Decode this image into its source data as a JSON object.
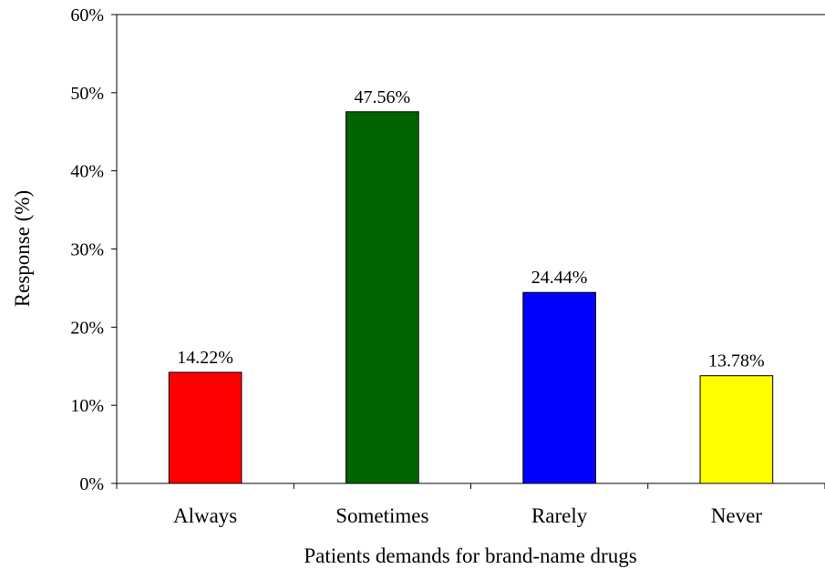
{
  "chart_data": {
    "type": "bar",
    "title": "",
    "xlabel": "Patients demands for brand-name drugs",
    "ylabel": "Response (%)",
    "categories": [
      "Always",
      "Sometimes",
      "Rarely",
      "Never"
    ],
    "values": [
      14.22,
      47.56,
      24.44,
      13.78
    ],
    "data_labels": [
      "14.22%",
      "47.56%",
      "24.44%",
      "13.78%"
    ],
    "colors": [
      "#ff0000",
      "#006400",
      "#0000ff",
      "#ffff00"
    ],
    "ylim": [
      0,
      60
    ],
    "y_ticks": [
      0,
      10,
      20,
      30,
      40,
      50,
      60
    ],
    "y_tick_labels": [
      "0%",
      "10%",
      "20%",
      "30%",
      "40%",
      "50%",
      "60%"
    ],
    "grid": false,
    "legend": "none"
  }
}
